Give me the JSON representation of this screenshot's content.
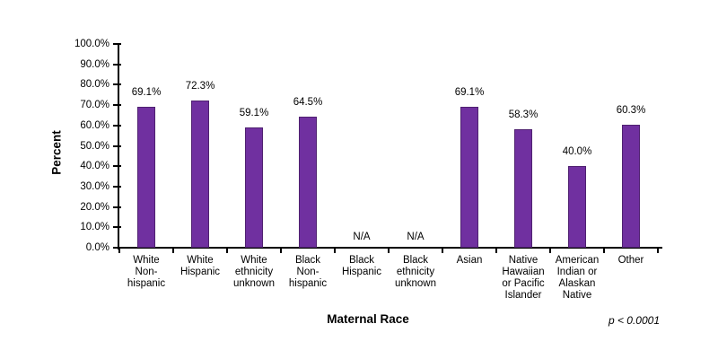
{
  "chart_data": {
    "type": "bar",
    "title": "",
    "xlabel": "Maternal Race",
    "ylabel": "Percent",
    "annotation": "p < 0.0001",
    "categories": [
      "White Non-hispanic",
      "White Hispanic",
      "White ethnicity unknown",
      "Black Non-hispanic",
      "Black Hispanic",
      "Black ethnicity unknown",
      "Asian",
      "Native Hawaiian or Pacific Islander",
      "American Indian or Alaskan Native",
      "Other"
    ],
    "category_lines": [
      [
        "White",
        "Non-",
        "hispanic"
      ],
      [
        "White",
        "Hispanic"
      ],
      [
        "White",
        "ethnicity",
        "unknown"
      ],
      [
        "Black",
        "Non-",
        "hispanic"
      ],
      [
        "Black",
        "Hispanic"
      ],
      [
        "Black",
        "ethnicity",
        "unknown"
      ],
      [
        "Asian"
      ],
      [
        "Native",
        "Hawaiian",
        "or Pacific",
        "Islander"
      ],
      [
        "American",
        "Indian or",
        "Alaskan",
        "Native"
      ],
      [
        "Other"
      ]
    ],
    "values": [
      69.1,
      72.3,
      59.1,
      64.5,
      null,
      null,
      69.1,
      58.3,
      40.0,
      60.3
    ],
    "value_labels": [
      "69.1%",
      "72.3%",
      "59.1%",
      "64.5%",
      "N/A",
      "N/A",
      "69.1%",
      "58.3%",
      "40.0%",
      "60.3%"
    ],
    "na_label": "N/A",
    "y_ticks": [
      "0.0%",
      "10.0%",
      "20.0%",
      "30.0%",
      "40.0%",
      "50.0%",
      "60.0%",
      "70.0%",
      "80.0%",
      "90.0%",
      "100.0%"
    ],
    "ylim": [
      0,
      100
    ],
    "grid": false,
    "legend": "none",
    "bar_color": "#7030A0",
    "bar_border_color": "#4F2170",
    "axis_color": "#000000",
    "text_color": "#000000"
  }
}
